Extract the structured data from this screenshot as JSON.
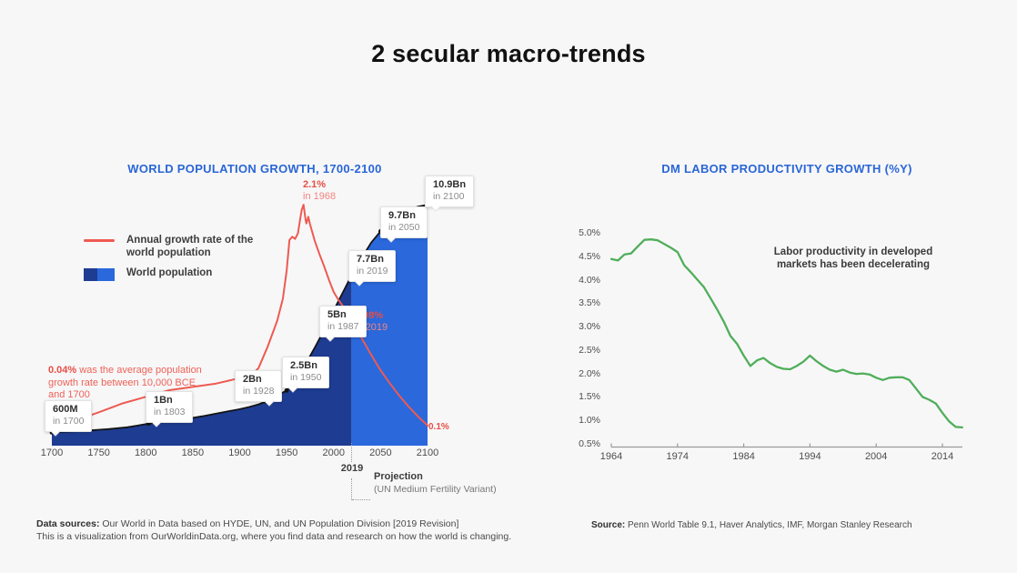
{
  "slide": {
    "title": "2 secular macro-trends"
  },
  "colors": {
    "background": "#f7f7f8",
    "chart_title_blue": "#2a66d6",
    "population_historical_blue": "#1e3c92",
    "population_projection_blue": "#2a68dc",
    "growth_rate_red": "#ee5a51",
    "productivity_green": "#50ae5a",
    "area_outline_black": "#141414"
  },
  "chart_data": [
    {
      "type": "area+line",
      "title": "WORLD POPULATION GROWTH, 1700-2100",
      "xlim": [
        1700,
        2100
      ],
      "x_ticks": [
        1700,
        1750,
        1800,
        1850,
        1900,
        1950,
        2000,
        2050,
        2100
      ],
      "grid": "off",
      "legend_position": "middle-left",
      "projection_start": 2019,
      "series": [
        {
          "name": "World population",
          "type": "area",
          "unit": "billions",
          "ylim": [
            0,
            11.2
          ],
          "color_historical": "#1e3c92",
          "color_projection": "#2a68dc",
          "outline": "#141414",
          "points": [
            [
              1700,
              0.6
            ],
            [
              1710,
              0.62
            ],
            [
              1720,
              0.64
            ],
            [
              1730,
              0.66
            ],
            [
              1740,
              0.69
            ],
            [
              1750,
              0.72
            ],
            [
              1760,
              0.75
            ],
            [
              1770,
              0.79
            ],
            [
              1780,
              0.83
            ],
            [
              1790,
              0.9
            ],
            [
              1803,
              1.0
            ],
            [
              1810,
              1.03
            ],
            [
              1820,
              1.07
            ],
            [
              1830,
              1.12
            ],
            [
              1840,
              1.19
            ],
            [
              1850,
              1.26
            ],
            [
              1860,
              1.33
            ],
            [
              1870,
              1.41
            ],
            [
              1880,
              1.49
            ],
            [
              1890,
              1.57
            ],
            [
              1900,
              1.65
            ],
            [
              1910,
              1.75
            ],
            [
              1920,
              1.87
            ],
            [
              1928,
              2.0
            ],
            [
              1940,
              2.27
            ],
            [
              1950,
              2.5
            ],
            [
              1960,
              3.02
            ],
            [
              1970,
              3.68
            ],
            [
              1980,
              4.44
            ],
            [
              1987,
              5.0
            ],
            [
              2000,
              6.12
            ],
            [
              2010,
              6.95
            ],
            [
              2019,
              7.7
            ],
            [
              2030,
              8.5
            ],
            [
              2040,
              9.19
            ],
            [
              2050,
              9.7
            ],
            [
              2060,
              10.15
            ],
            [
              2070,
              10.45
            ],
            [
              2080,
              10.67
            ],
            [
              2090,
              10.82
            ],
            [
              2100,
              10.9
            ]
          ]
        },
        {
          "name": "Annual growth rate of the world population",
          "type": "line",
          "unit": "%",
          "ylim": [
            0,
            2.45
          ],
          "color": "#ee5a51",
          "points": [
            [
              1700,
              0.07
            ],
            [
              1720,
              0.13
            ],
            [
              1750,
              0.22
            ],
            [
              1775,
              0.3
            ],
            [
              1800,
              0.36
            ],
            [
              1825,
              0.42
            ],
            [
              1850,
              0.45
            ],
            [
              1875,
              0.48
            ],
            [
              1900,
              0.53
            ],
            [
              1913,
              0.56
            ],
            [
              1920,
              0.62
            ],
            [
              1930,
              0.82
            ],
            [
              1940,
              1.05
            ],
            [
              1946,
              1.25
            ],
            [
              1950,
              1.5
            ],
            [
              1953,
              1.78
            ],
            [
              1956,
              1.81
            ],
            [
              1959,
              1.79
            ],
            [
              1962,
              1.84
            ],
            [
              1964,
              1.95
            ],
            [
              1966,
              2.05
            ],
            [
              1968,
              2.1
            ],
            [
              1970,
              1.97
            ],
            [
              1971,
              1.93
            ],
            [
              1973,
              1.99
            ],
            [
              1975,
              1.92
            ],
            [
              1980,
              1.77
            ],
            [
              1985,
              1.65
            ],
            [
              1990,
              1.54
            ],
            [
              1995,
              1.42
            ],
            [
              2000,
              1.31
            ],
            [
              2005,
              1.24
            ],
            [
              2010,
              1.18
            ],
            [
              2015,
              1.12
            ],
            [
              2019,
              1.08
            ],
            [
              2030,
              0.89
            ],
            [
              2040,
              0.74
            ],
            [
              2050,
              0.6
            ],
            [
              2060,
              0.48
            ],
            [
              2070,
              0.37
            ],
            [
              2080,
              0.27
            ],
            [
              2090,
              0.18
            ],
            [
              2100,
              0.1
            ]
          ]
        }
      ],
      "markers": [
        [
          1700,
          0.6
        ],
        [
          1803,
          1.0
        ],
        [
          1928,
          2.0
        ],
        [
          1950,
          2.5
        ],
        [
          1987,
          5.0
        ],
        [
          2019,
          7.7
        ],
        [
          2050,
          9.7
        ],
        [
          2100,
          10.9
        ]
      ],
      "annotations": [
        {
          "value": "600M",
          "year": "in 1700"
        },
        {
          "value": "1Bn",
          "year": "in 1803"
        },
        {
          "value": "2Bn",
          "year": "in 1928"
        },
        {
          "value": "2.5Bn",
          "year": "in 1950"
        },
        {
          "value": "5Bn",
          "year": "in 1987"
        },
        {
          "value": "7.7Bn",
          "year": "in 2019"
        },
        {
          "value": "9.7Bn",
          "year": "in 2050"
        },
        {
          "value": "10.9Bn",
          "year": "in 2100"
        }
      ],
      "rate_annotations": [
        {
          "value": "2.1%",
          "year": "in 1968"
        },
        {
          "value": "1.08%",
          "year": "in 2019"
        },
        {
          "value": "0.1%",
          "year": ""
        }
      ],
      "note_bold": "0.04%",
      "note_rest": " was the average population growth rate between 10,000 BCE and 1700",
      "projection_label": {
        "year": "2019",
        "line1": "Projection",
        "line2": "(UN Medium Fertility Variant)"
      }
    },
    {
      "type": "line",
      "title": "DM LABOR PRODUCTIVITY GROWTH (%Y)",
      "color": "#50ae5a",
      "grid": "off",
      "ylim": [
        0.5,
        5.0
      ],
      "y_ticks": [
        "5.0%",
        "4.5%",
        "4.0%",
        "3.5%",
        "3.0%",
        "2.5%",
        "2.0%",
        "1.5%",
        "1.0%",
        "0.5%"
      ],
      "x_ticks": [
        1964,
        1974,
        1984,
        1994,
        2004,
        2014
      ],
      "annotation": "Labor productivity in developed markets has been decelerating",
      "x": [
        1964,
        1965,
        1966,
        1967,
        1968,
        1969,
        1970,
        1971,
        1972,
        1973,
        1974,
        1975,
        1976,
        1977,
        1978,
        1979,
        1980,
        1981,
        1982,
        1983,
        1984,
        1985,
        1986,
        1987,
        1988,
        1989,
        1990,
        1991,
        1992,
        1993,
        1994,
        1995,
        1996,
        1997,
        1998,
        1999,
        2000,
        2001,
        2002,
        2003,
        2004,
        2005,
        2006,
        2007,
        2008,
        2009,
        2010,
        2011,
        2012,
        2013,
        2014,
        2015,
        2016,
        2017
      ],
      "values": [
        4.46,
        4.43,
        4.56,
        4.58,
        4.73,
        4.87,
        4.88,
        4.86,
        4.78,
        4.7,
        4.61,
        4.33,
        4.18,
        4.02,
        3.86,
        3.62,
        3.38,
        3.12,
        2.82,
        2.65,
        2.4,
        2.18,
        2.3,
        2.35,
        2.24,
        2.16,
        2.12,
        2.11,
        2.18,
        2.27,
        2.4,
        2.28,
        2.18,
        2.1,
        2.06,
        2.1,
        2.04,
        2.01,
        2.02,
        2.0,
        1.93,
        1.88,
        1.93,
        1.94,
        1.94,
        1.88,
        1.7,
        1.52,
        1.46,
        1.38,
        1.18,
        1.0,
        0.88,
        0.87
      ]
    }
  ],
  "footer_left": {
    "label": "Data sources:",
    "text": " Our World in Data based on HYDE, UN, and UN Population Division [2019 Revision]",
    "line2": "This is a visualization from OurWorldinData.org, where you find data and research on how the world is changing."
  },
  "footer_right": {
    "label": "Source:",
    "text": " Penn World Table 9.1, Haver Analytics, IMF, Morgan Stanley Research"
  }
}
